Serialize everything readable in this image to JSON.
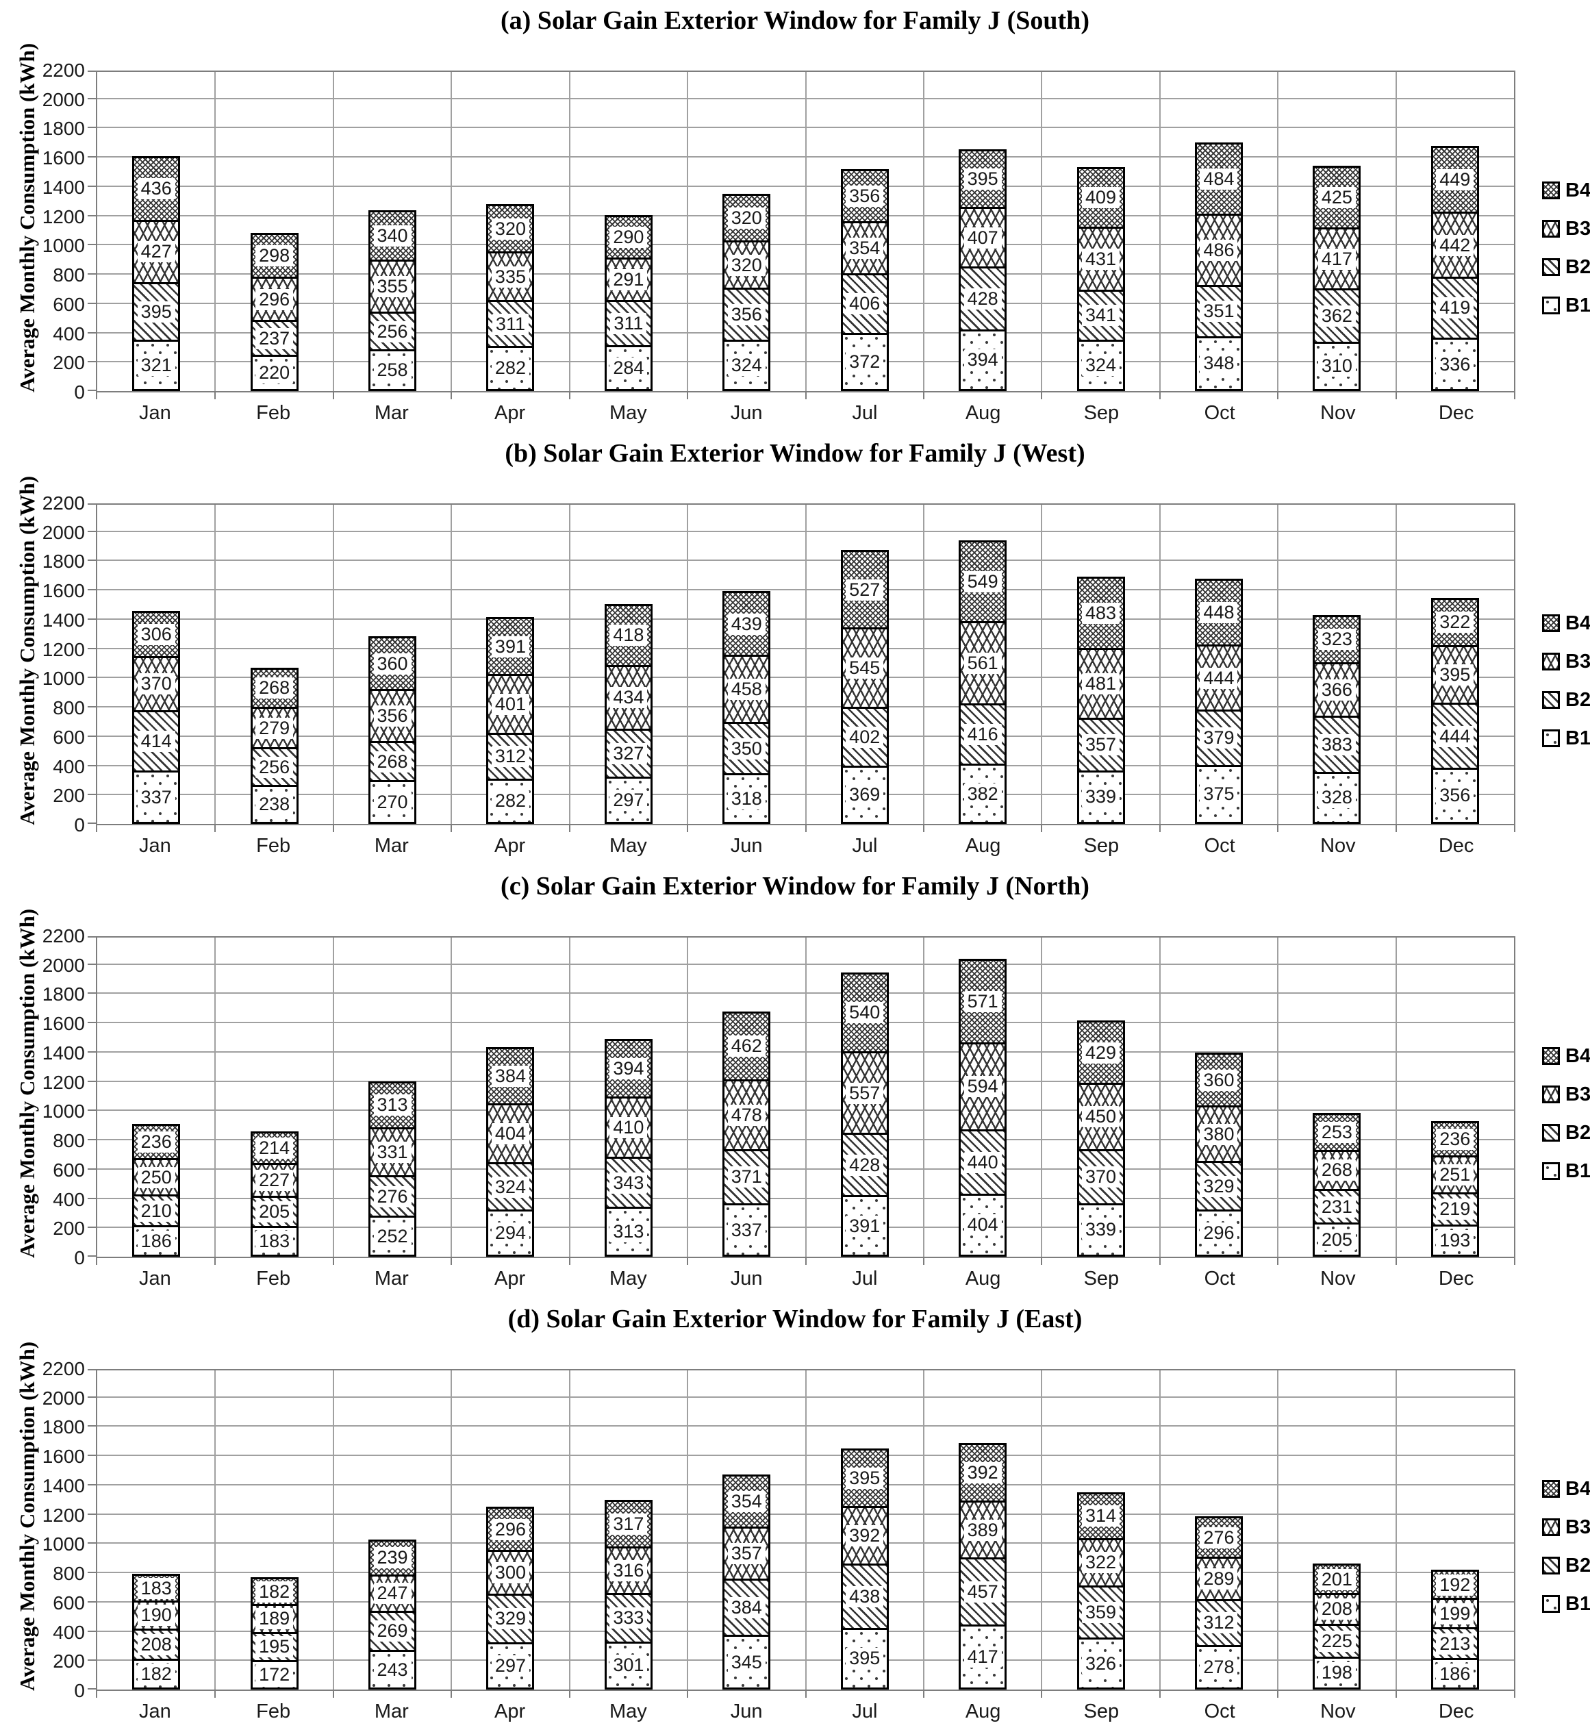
{
  "y_axis_label": "Average Monthly Consumption (kWh)",
  "months": [
    "Jan",
    "Feb",
    "Mar",
    "Apr",
    "May",
    "Jun",
    "Jul",
    "Aug",
    "Sep",
    "Oct",
    "Nov",
    "Dec"
  ],
  "series_order": [
    "B1",
    "B2",
    "B3",
    "B4"
  ],
  "legend_order": [
    "B4",
    "B3",
    "B2",
    "B1"
  ],
  "axis": {
    "y_min": 0,
    "y_max": 2200,
    "y_tick_step": 200,
    "y_ticks": [
      0,
      200,
      400,
      600,
      800,
      1000,
      1200,
      1400,
      1600,
      1800,
      2000,
      2200
    ]
  },
  "colors": {
    "pattern_ink": "#333333",
    "gridline": "#a0a0a0",
    "axis_border": "#7d7d7d",
    "bar_border": "#000000",
    "background": "#ffffff"
  },
  "chart_data": [
    {
      "type": "bar",
      "stacked": true,
      "title": "(a) Solar Gain Exterior Window for Family J (South)",
      "ylabel": "Average Monthly Consumption (kWh)",
      "ylim": [
        0,
        2200
      ],
      "grid": true,
      "legend_position": "right",
      "categories": [
        "Jan",
        "Feb",
        "Mar",
        "Apr",
        "May",
        "Jun",
        "Jul",
        "Aug",
        "Sep",
        "Oct",
        "Nov",
        "Dec"
      ],
      "series": [
        {
          "name": "B1",
          "values": [
            321,
            220,
            258,
            282,
            284,
            324,
            372,
            394,
            324,
            348,
            310,
            336
          ]
        },
        {
          "name": "B2",
          "values": [
            395,
            237,
            256,
            311,
            311,
            356,
            406,
            428,
            341,
            351,
            362,
            419
          ]
        },
        {
          "name": "B3",
          "values": [
            427,
            296,
            355,
            335,
            291,
            320,
            354,
            407,
            431,
            486,
            417,
            442
          ]
        },
        {
          "name": "B4",
          "values": [
            436,
            298,
            340,
            320,
            290,
            320,
            356,
            395,
            409,
            484,
            425,
            449
          ]
        }
      ]
    },
    {
      "type": "bar",
      "stacked": true,
      "title": "(b) Solar Gain Exterior Window for Family J (West)",
      "ylabel": "Average Monthly Consumption (kWh)",
      "ylim": [
        0,
        2200
      ],
      "grid": true,
      "legend_position": "right",
      "categories": [
        "Jan",
        "Feb",
        "Mar",
        "Apr",
        "May",
        "Jun",
        "Jul",
        "Aug",
        "Sep",
        "Oct",
        "Nov",
        "Dec"
      ],
      "series": [
        {
          "name": "B1",
          "values": [
            337,
            238,
            270,
            282,
            297,
            318,
            369,
            382,
            339,
            375,
            328,
            356
          ]
        },
        {
          "name": "B2",
          "values": [
            414,
            256,
            268,
            312,
            327,
            350,
            402,
            416,
            357,
            379,
            383,
            444
          ]
        },
        {
          "name": "B3",
          "values": [
            370,
            279,
            356,
            401,
            434,
            458,
            545,
            561,
            481,
            444,
            366,
            395
          ]
        },
        {
          "name": "B4",
          "values": [
            306,
            268,
            360,
            391,
            418,
            439,
            527,
            549,
            483,
            448,
            323,
            322
          ]
        }
      ]
    },
    {
      "type": "bar",
      "stacked": true,
      "title": "(c) Solar Gain Exterior Window for Family J (North)",
      "ylabel": "Average Monthly Consumption (kWh)",
      "ylim": [
        0,
        2200
      ],
      "grid": true,
      "legend_position": "right",
      "categories": [
        "Jan",
        "Feb",
        "Mar",
        "Apr",
        "May",
        "Jun",
        "Jul",
        "Aug",
        "Sep",
        "Oct",
        "Nov",
        "Dec"
      ],
      "series": [
        {
          "name": "B1",
          "values": [
            186,
            183,
            252,
            294,
            313,
            337,
            391,
            404,
            339,
            296,
            205,
            193
          ]
        },
        {
          "name": "B2",
          "values": [
            210,
            205,
            276,
            324,
            343,
            371,
            428,
            440,
            370,
            329,
            231,
            219
          ]
        },
        {
          "name": "B3",
          "values": [
            250,
            227,
            331,
            404,
            410,
            478,
            557,
            594,
            450,
            380,
            268,
            251
          ]
        },
        {
          "name": "B4",
          "values": [
            236,
            214,
            313,
            384,
            394,
            462,
            540,
            571,
            429,
            360,
            253,
            236
          ]
        }
      ]
    },
    {
      "type": "bar",
      "stacked": true,
      "title": "(d) Solar Gain Exterior Window for Family J (East)",
      "ylabel": "Average Monthly Consumption (kWh)",
      "ylim": [
        0,
        2200
      ],
      "grid": true,
      "legend_position": "right",
      "categories": [
        "Jan",
        "Feb",
        "Mar",
        "Apr",
        "May",
        "Jun",
        "Jul",
        "Aug",
        "Sep",
        "Oct",
        "Nov",
        "Dec"
      ],
      "series": [
        {
          "name": "B1",
          "values": [
            182,
            172,
            243,
            297,
            301,
            345,
            395,
            417,
            326,
            278,
            198,
            186
          ]
        },
        {
          "name": "B2",
          "values": [
            208,
            195,
            269,
            329,
            333,
            384,
            438,
            457,
            359,
            312,
            225,
            213
          ]
        },
        {
          "name": "B3",
          "values": [
            190,
            189,
            247,
            300,
            316,
            357,
            392,
            389,
            322,
            289,
            208,
            199
          ]
        },
        {
          "name": "B4",
          "values": [
            183,
            182,
            239,
            296,
            317,
            354,
            395,
            392,
            314,
            276,
            201,
            192
          ]
        }
      ]
    }
  ]
}
